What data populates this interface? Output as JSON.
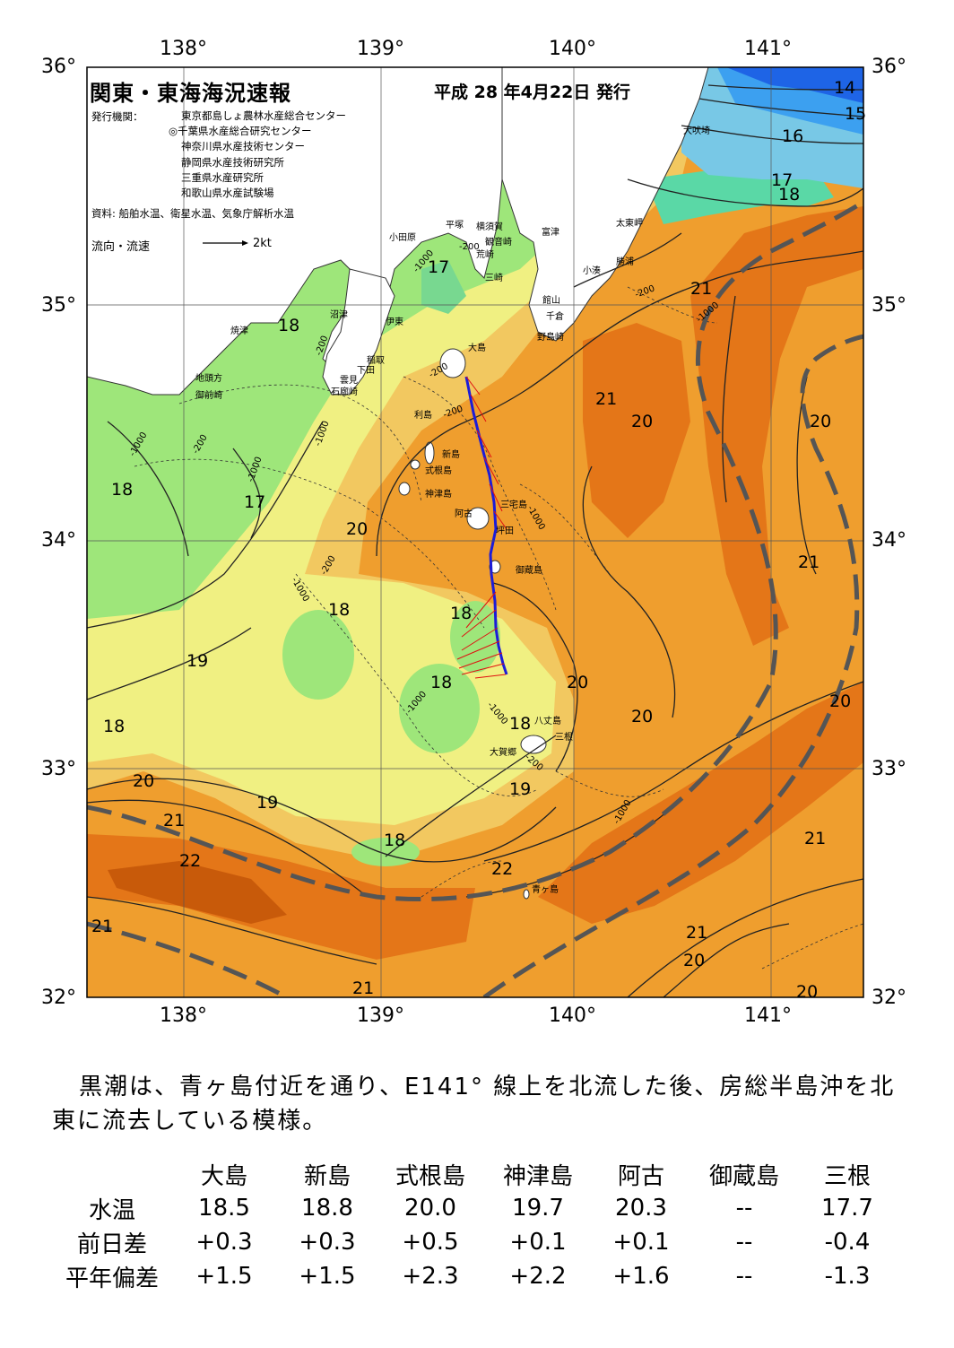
{
  "map": {
    "title": "関東・東海海況速報",
    "issue_date": "平成 28 年4月22日 発行",
    "issuer_label": "発行機関：",
    "issuers": [
      "東京都島しょ農林水産総合センター",
      "◎千葉県水産総合研究センター",
      "神奈川県水産技術センター",
      "静岡県水産技術研究所",
      "三重県水産研究所",
      "和歌山県水産試験場"
    ],
    "source": "資料: 船舶水温、衛星水温、気象庁解析水温",
    "flow_label": "流向・流速",
    "flow_scale": "2kt",
    "lon_labels": [
      "138°",
      "139°",
      "140°",
      "141°"
    ],
    "lat_labels": [
      "36°",
      "35°",
      "34°",
      "33°",
      "32°"
    ],
    "isotherm_labels": [
      "14",
      "15",
      "16",
      "17",
      "18",
      "21",
      "21",
      "20",
      "20",
      "17",
      "18",
      "18",
      "17",
      "20",
      "18",
      "19",
      "21",
      "18",
      "18",
      "18",
      "20",
      "20",
      "20",
      "18",
      "19",
      "20",
      "21",
      "19",
      "18",
      "22",
      "22",
      "21",
      "21",
      "21",
      "20",
      "20",
      "21"
    ],
    "place_names": [
      "犬吠埼",
      "太東岬",
      "勝浦",
      "小湊",
      "富津",
      "観音崎",
      "横須賀",
      "平塚",
      "荒崎",
      "三崎",
      "小田原",
      "館山",
      "千倉",
      "野島崎",
      "沼津",
      "伊東",
      "焼津",
      "稲取",
      "下田",
      "雲見",
      "石廊崎",
      "地頭方",
      "御前崎",
      "大島",
      "利島",
      "新島",
      "式根島",
      "神津島",
      "三宅島",
      "阿古",
      "坪田",
      "御蔵島",
      "八丈島",
      "三根",
      "大賀郷",
      "青ヶ島"
    ],
    "depth_labels": [
      "-200",
      "-1000",
      "-200",
      "-200",
      "-1000",
      "-200",
      "-1000",
      "-200",
      "-1000",
      "-200",
      "-1000",
      "-1000",
      "-200",
      "-1000",
      "-1000",
      "-1000",
      "-200",
      "-1000"
    ],
    "colors": {
      "temp_14": "#1e64e6",
      "temp_15": "#3ca0f0",
      "temp_16": "#78c8e6",
      "temp_17": "#5ad8a6",
      "temp_18": "#9ee67a",
      "temp_19": "#f0f082",
      "temp_20": "#f2c860",
      "temp_21": "#ef9e2e",
      "temp_22": "#e47618",
      "temp_23": "#c85a0a",
      "kuroshio_axis": "#555555",
      "ship_track": "#1c1cd8",
      "current_arrows": "#e01010"
    }
  },
  "summary": "黒潮は、青ヶ島付近を通り、E141° 線上を北流した後、房総半島沖を北東に流去している模様。",
  "table": {
    "headers": [
      "",
      "大島",
      "新島",
      "式根島",
      "神津島",
      "阿古",
      "御蔵島",
      "三根"
    ],
    "rows": [
      {
        "label": "水温",
        "values": [
          "18.5",
          "18.8",
          "20.0",
          "19.7",
          "20.3",
          "--",
          "17.7"
        ]
      },
      {
        "label": "前日差",
        "values": [
          "+0.3",
          "+0.3",
          "+0.5",
          "+0.1",
          "+0.1",
          "--",
          "-0.4"
        ]
      },
      {
        "label": "平年偏差",
        "values": [
          "+1.5",
          "+1.5",
          "+2.3",
          "+2.2",
          "+1.6",
          "--",
          "-1.3"
        ]
      }
    ]
  }
}
